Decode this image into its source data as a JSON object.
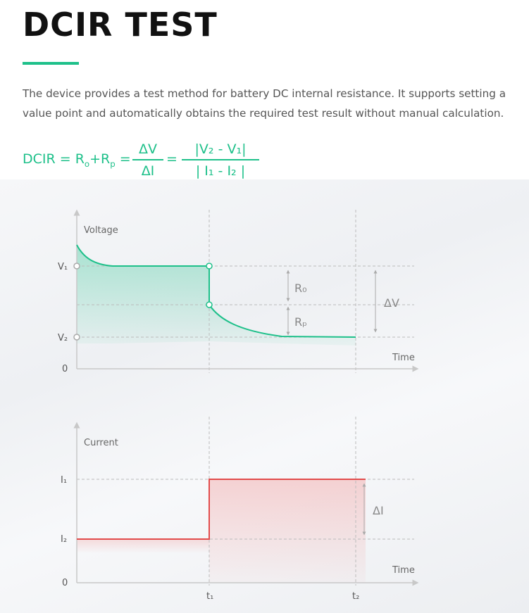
{
  "header": {
    "title": "DCIR TEST",
    "description": "The device provides a test method for battery DC internal resistance. It supports setting a value point and automatically obtains the required test result without manual calculation."
  },
  "formula": {
    "lhs": "DCIR = R",
    "lhs_sub1": "o",
    "lhs_mid": "+R",
    "lhs_sub2": "p",
    "lhs_eq": " =",
    "frac1_num": "ΔV",
    "frac1_den": "ΔI",
    "eq2": "=",
    "frac2_num": "|V₂ - V₁|",
    "frac2_den": "| I₁ - I₂ |"
  },
  "colors": {
    "accent_green": "#1ec08a",
    "current_red": "#e24b4b",
    "text_dark": "#111111",
    "text_body": "#555555"
  },
  "chart_data": [
    {
      "type": "line",
      "ylabel": "Voltage",
      "xlabel": "Time",
      "yticks": [
        "V₁",
        "V₂",
        "0"
      ],
      "xticks": [],
      "annotations": {
        "ro": "R₀",
        "rp": "Rₚ",
        "delta": "ΔV"
      },
      "series": [
        {
          "values_desc": "",
          "points": [
            [
              0,
              1.16
            ],
            [
              0.2,
              1.02
            ],
            [
              0.6,
              1.0
            ],
            [
              1,
              1.0
            ],
            [
              1,
              0.72
            ],
            [
              1.3,
              0.6
            ],
            [
              1.6,
              0.54
            ],
            [
              2.0,
              0.52
            ]
          ]
        }
      ],
      "levels": {
        "V1": 1.0,
        "Vmid": 0.72,
        "V2": 0.52
      }
    },
    {
      "type": "line",
      "ylabel": "Current",
      "xlabel": "Time",
      "yticks": [
        "I₁",
        "I₂",
        "0"
      ],
      "xticks": [
        "t₁",
        "t₂"
      ],
      "annotations": {
        "delta": "ΔI"
      },
      "series": [
        {
          "points": [
            [
              0,
              0.4
            ],
            [
              1,
              0.4
            ],
            [
              1,
              0.87
            ],
            [
              2.0,
              0.87
            ]
          ]
        }
      ],
      "levels": {
        "I1": 0.87,
        "I2": 0.4
      }
    }
  ]
}
